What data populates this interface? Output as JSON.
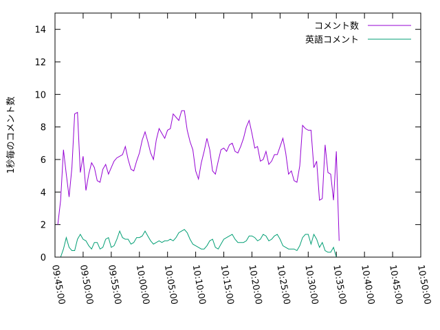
{
  "chart_data": {
    "type": "line",
    "title": "",
    "xlabel": "",
    "ylabel": "1秒毎のコメント数",
    "ylim": [
      0,
      15
    ],
    "xlim": [
      "09:45:00",
      "10:50:00"
    ],
    "yticks": [
      0,
      2,
      4,
      6,
      8,
      10,
      12,
      14
    ],
    "xticks": [
      "09:45:00",
      "09:50:00",
      "09:55:00",
      "10:00:00",
      "10:05:00",
      "10:10:00",
      "10:15:00",
      "10:20:00",
      "10:25:00",
      "10:30:00",
      "10:35:00",
      "10:40:00",
      "10:45:00",
      "10:50:00"
    ],
    "grid": false,
    "legend_position": "top-right",
    "series": [
      {
        "name": "コメント数",
        "color": "#9400d3",
        "points": [
          [
            "09:45:30",
            2.0
          ],
          [
            "09:46:00",
            3.5
          ],
          [
            "09:46:30",
            6.6
          ],
          [
            "09:47:00",
            5.1
          ],
          [
            "09:47:30",
            3.7
          ],
          [
            "09:48:00",
            5.5
          ],
          [
            "09:48:30",
            8.8
          ],
          [
            "09:49:00",
            8.9
          ],
          [
            "09:49:30",
            5.2
          ],
          [
            "09:50:00",
            6.2
          ],
          [
            "09:50:30",
            4.1
          ],
          [
            "09:51:00",
            5.1
          ],
          [
            "09:51:30",
            5.8
          ],
          [
            "09:52:00",
            5.5
          ],
          [
            "09:52:30",
            4.7
          ],
          [
            "09:53:00",
            4.6
          ],
          [
            "09:53:30",
            5.4
          ],
          [
            "09:54:00",
            5.7
          ],
          [
            "09:54:30",
            5.1
          ],
          [
            "09:55:00",
            5.5
          ],
          [
            "09:55:30",
            5.9
          ],
          [
            "09:56:00",
            6.1
          ],
          [
            "09:56:30",
            6.2
          ],
          [
            "09:57:00",
            6.3
          ],
          [
            "09:57:30",
            6.8
          ],
          [
            "09:58:00",
            6.0
          ],
          [
            "09:58:30",
            5.4
          ],
          [
            "09:59:00",
            5.3
          ],
          [
            "09:59:30",
            5.9
          ],
          [
            "10:00:00",
            6.4
          ],
          [
            "10:00:30",
            7.2
          ],
          [
            "10:01:00",
            7.7
          ],
          [
            "10:01:30",
            7.1
          ],
          [
            "10:02:00",
            6.4
          ],
          [
            "10:02:30",
            6.0
          ],
          [
            "10:03:00",
            7.2
          ],
          [
            "10:03:30",
            7.9
          ],
          [
            "10:04:00",
            7.6
          ],
          [
            "10:04:30",
            7.3
          ],
          [
            "10:05:00",
            7.8
          ],
          [
            "10:05:30",
            7.9
          ],
          [
            "10:06:00",
            8.8
          ],
          [
            "10:06:30",
            8.6
          ],
          [
            "10:07:00",
            8.4
          ],
          [
            "10:07:30",
            9.0
          ],
          [
            "10:08:00",
            9.0
          ],
          [
            "10:08:30",
            7.8
          ],
          [
            "10:09:00",
            7.1
          ],
          [
            "10:09:30",
            6.6
          ],
          [
            "10:10:00",
            5.3
          ],
          [
            "10:10:30",
            4.8
          ],
          [
            "10:11:00",
            5.8
          ],
          [
            "10:11:30",
            6.5
          ],
          [
            "10:12:00",
            7.3
          ],
          [
            "10:12:30",
            6.6
          ],
          [
            "10:13:00",
            5.3
          ],
          [
            "10:13:30",
            5.1
          ],
          [
            "10:14:00",
            5.9
          ],
          [
            "10:14:30",
            6.6
          ],
          [
            "10:15:00",
            6.7
          ],
          [
            "10:15:30",
            6.5
          ],
          [
            "10:16:00",
            6.9
          ],
          [
            "10:16:30",
            7.0
          ],
          [
            "10:17:00",
            6.5
          ],
          [
            "10:17:30",
            6.4
          ],
          [
            "10:18:00",
            6.8
          ],
          [
            "10:18:30",
            7.3
          ],
          [
            "10:19:00",
            8.0
          ],
          [
            "10:19:30",
            8.4
          ],
          [
            "10:20:00",
            7.6
          ],
          [
            "10:20:30",
            6.7
          ],
          [
            "10:21:00",
            6.8
          ],
          [
            "10:21:30",
            5.9
          ],
          [
            "10:22:00",
            6.0
          ],
          [
            "10:22:30",
            6.5
          ],
          [
            "10:23:00",
            5.7
          ],
          [
            "10:23:30",
            5.9
          ],
          [
            "10:24:00",
            6.3
          ],
          [
            "10:24:30",
            6.3
          ],
          [
            "10:25:00",
            6.8
          ],
          [
            "10:25:30",
            7.3
          ],
          [
            "10:26:00",
            6.4
          ],
          [
            "10:26:30",
            5.1
          ],
          [
            "10:27:00",
            5.3
          ],
          [
            "10:27:30",
            4.7
          ],
          [
            "10:28:00",
            4.6
          ],
          [
            "10:28:30",
            5.6
          ],
          [
            "10:29:00",
            8.1
          ],
          [
            "10:29:30",
            7.9
          ],
          [
            "10:30:00",
            7.8
          ],
          [
            "10:30:30",
            7.8
          ],
          [
            "10:31:00",
            5.5
          ],
          [
            "10:31:30",
            5.9
          ],
          [
            "10:32:00",
            3.5
          ],
          [
            "10:32:30",
            3.6
          ],
          [
            "10:33:00",
            6.9
          ],
          [
            "10:33:30",
            5.2
          ],
          [
            "10:34:00",
            5.1
          ],
          [
            "10:34:30",
            3.5
          ],
          [
            "10:35:00",
            6.5
          ],
          [
            "10:35:30",
            1.0
          ]
        ]
      },
      {
        "name": "英語コメント",
        "color": "#009e73",
        "points": [
          [
            "09:46:00",
            0.0
          ],
          [
            "09:46:30",
            0.5
          ],
          [
            "09:47:00",
            1.2
          ],
          [
            "09:47:30",
            0.6
          ],
          [
            "09:48:00",
            0.4
          ],
          [
            "09:48:30",
            0.4
          ],
          [
            "09:49:00",
            1.1
          ],
          [
            "09:49:30",
            1.4
          ],
          [
            "09:50:00",
            1.1
          ],
          [
            "09:50:30",
            1.0
          ],
          [
            "09:51:00",
            0.7
          ],
          [
            "09:51:30",
            0.5
          ],
          [
            "09:52:00",
            0.9
          ],
          [
            "09:52:30",
            0.9
          ],
          [
            "09:53:00",
            0.5
          ],
          [
            "09:53:30",
            0.6
          ],
          [
            "09:54:00",
            1.1
          ],
          [
            "09:54:30",
            1.2
          ],
          [
            "09:55:00",
            0.6
          ],
          [
            "09:55:30",
            0.7
          ],
          [
            "09:56:00",
            1.1
          ],
          [
            "09:56:30",
            1.6
          ],
          [
            "09:57:00",
            1.2
          ],
          [
            "09:57:30",
            1.1
          ],
          [
            "09:58:00",
            1.1
          ],
          [
            "09:58:30",
            0.8
          ],
          [
            "09:59:00",
            0.9
          ],
          [
            "09:59:30",
            1.2
          ],
          [
            "10:00:00",
            1.2
          ],
          [
            "10:00:30",
            1.3
          ],
          [
            "10:01:00",
            1.6
          ],
          [
            "10:01:30",
            1.3
          ],
          [
            "10:02:00",
            1.0
          ],
          [
            "10:02:30",
            0.8
          ],
          [
            "10:03:00",
            0.9
          ],
          [
            "10:03:30",
            1.0
          ],
          [
            "10:04:00",
            0.9
          ],
          [
            "10:04:30",
            1.0
          ],
          [
            "10:05:00",
            1.0
          ],
          [
            "10:05:30",
            1.1
          ],
          [
            "10:06:00",
            1.0
          ],
          [
            "10:06:30",
            1.2
          ],
          [
            "10:07:00",
            1.5
          ],
          [
            "10:07:30",
            1.6
          ],
          [
            "10:08:00",
            1.7
          ],
          [
            "10:08:30",
            1.5
          ],
          [
            "10:09:00",
            1.1
          ],
          [
            "10:09:30",
            0.8
          ],
          [
            "10:10:00",
            0.7
          ],
          [
            "10:10:30",
            0.6
          ],
          [
            "10:11:00",
            0.5
          ],
          [
            "10:11:30",
            0.5
          ],
          [
            "10:12:00",
            0.7
          ],
          [
            "10:12:30",
            1.0
          ],
          [
            "10:13:00",
            1.1
          ],
          [
            "10:13:30",
            0.6
          ],
          [
            "10:14:00",
            0.5
          ],
          [
            "10:14:30",
            0.8
          ],
          [
            "10:15:00",
            1.1
          ],
          [
            "10:15:30",
            1.2
          ],
          [
            "10:16:00",
            1.3
          ],
          [
            "10:16:30",
            1.4
          ],
          [
            "10:17:00",
            1.1
          ],
          [
            "10:17:30",
            0.9
          ],
          [
            "10:18:00",
            0.9
          ],
          [
            "10:18:30",
            0.9
          ],
          [
            "10:19:00",
            1.0
          ],
          [
            "10:19:30",
            1.3
          ],
          [
            "10:20:00",
            1.3
          ],
          [
            "10:20:30",
            1.2
          ],
          [
            "10:21:00",
            1.0
          ],
          [
            "10:21:30",
            1.1
          ],
          [
            "10:22:00",
            1.4
          ],
          [
            "10:22:30",
            1.3
          ],
          [
            "10:23:00",
            1.0
          ],
          [
            "10:23:30",
            1.1
          ],
          [
            "10:24:00",
            1.3
          ],
          [
            "10:24:30",
            1.4
          ],
          [
            "10:25:00",
            1.1
          ],
          [
            "10:25:30",
            0.7
          ],
          [
            "10:26:00",
            0.6
          ],
          [
            "10:26:30",
            0.5
          ],
          [
            "10:27:00",
            0.5
          ],
          [
            "10:27:30",
            0.5
          ],
          [
            "10:28:00",
            0.4
          ],
          [
            "10:28:30",
            0.7
          ],
          [
            "10:29:00",
            1.2
          ],
          [
            "10:29:30",
            1.4
          ],
          [
            "10:30:00",
            1.4
          ],
          [
            "10:30:30",
            0.8
          ],
          [
            "10:31:00",
            1.4
          ],
          [
            "10:31:30",
            1.1
          ],
          [
            "10:32:00",
            0.6
          ],
          [
            "10:32:30",
            0.9
          ],
          [
            "10:33:00",
            0.4
          ],
          [
            "10:33:30",
            0.3
          ],
          [
            "10:34:00",
            0.3
          ],
          [
            "10:34:30",
            0.6
          ],
          [
            "10:35:00",
            0.0
          ]
        ]
      }
    ]
  }
}
